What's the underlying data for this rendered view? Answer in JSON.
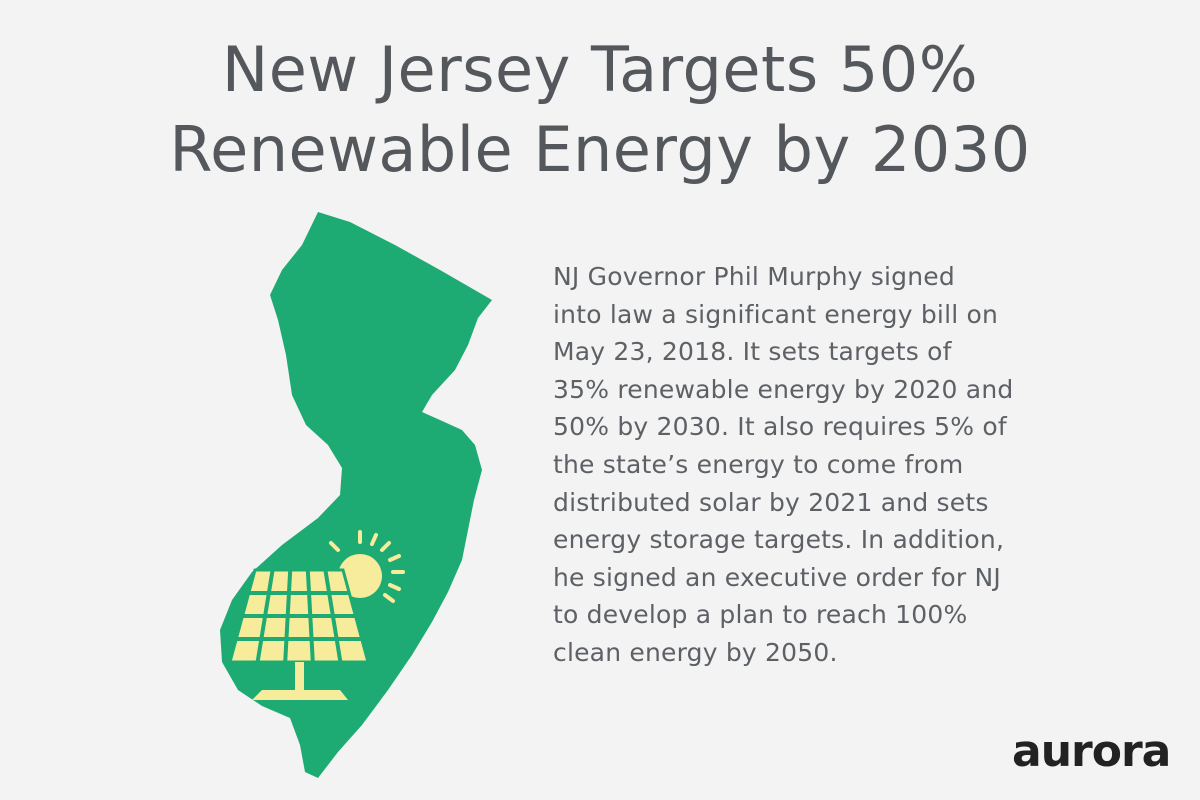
{
  "title_lines": [
    "New Jersey Targets 50%",
    "Renewable Energy by 2030"
  ],
  "body_lines": [
    "NJ Governor Phil Murphy signed",
    "into law a significant energy bill on",
    "May 23, 2018. It sets targets of",
    "35% renewable energy by 2020 and",
    "50% by 2030. It also requires 5% of",
    "the state’s energy to come from",
    "distributed solar by 2021 and sets",
    "energy storage targets. In addition,",
    "he signed an executive order for NJ",
    "to develop a plan to reach 100%",
    "clean energy by 2050."
  ],
  "logo": "aurora"
}
